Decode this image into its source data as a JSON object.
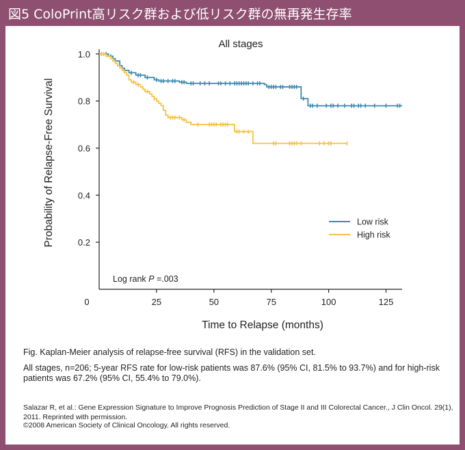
{
  "header": {
    "title": "図5 ColoPrint高リスク群および低リスク群の無再発生存率"
  },
  "chart_data": {
    "type": "line",
    "title": "All stages",
    "xlabel": "Time to Relapse (months)",
    "ylabel": "Probability of Relapse-Free Survival",
    "xlim": [
      0,
      132
    ],
    "ylim": [
      0,
      1.02
    ],
    "x_ticks": [
      "0",
      "25",
      "50",
      "75",
      "100",
      "125"
    ],
    "y_ticks": [
      "0.2",
      "0.4",
      "0.6",
      "0.8",
      "1.0"
    ],
    "legend_position": "right",
    "annotation_prefix": "Log rank ",
    "annotation_p": "P",
    "annotation_value": " =.003",
    "series": [
      {
        "name": "Low risk",
        "color": "#3a89b0",
        "steps": [
          [
            0,
            1.0
          ],
          [
            4,
            0.99
          ],
          [
            6,
            0.98
          ],
          [
            7,
            0.97
          ],
          [
            9,
            0.95
          ],
          [
            10,
            0.94
          ],
          [
            11,
            0.93
          ],
          [
            13,
            0.92
          ],
          [
            16,
            0.91
          ],
          [
            20,
            0.9
          ],
          [
            24,
            0.89
          ],
          [
            26,
            0.885
          ],
          [
            35,
            0.88
          ],
          [
            38,
            0.875
          ],
          [
            72,
            0.87
          ],
          [
            73,
            0.86
          ],
          [
            88,
            0.81
          ],
          [
            91,
            0.78
          ],
          [
            132,
            0.78
          ]
        ],
        "censors": [
          [
            1,
            1.0
          ],
          [
            3,
            1.0
          ],
          [
            5,
            0.99
          ],
          [
            14,
            0.92
          ],
          [
            17,
            0.91
          ],
          [
            18,
            0.91
          ],
          [
            21,
            0.9
          ],
          [
            25,
            0.89
          ],
          [
            27,
            0.885
          ],
          [
            28,
            0.885
          ],
          [
            30,
            0.885
          ],
          [
            32,
            0.885
          ],
          [
            33,
            0.885
          ],
          [
            36,
            0.88
          ],
          [
            37,
            0.88
          ],
          [
            40,
            0.875
          ],
          [
            41,
            0.875
          ],
          [
            44,
            0.875
          ],
          [
            46,
            0.875
          ],
          [
            48,
            0.875
          ],
          [
            52,
            0.875
          ],
          [
            53,
            0.875
          ],
          [
            55,
            0.875
          ],
          [
            57,
            0.875
          ],
          [
            59,
            0.875
          ],
          [
            60,
            0.875
          ],
          [
            61,
            0.875
          ],
          [
            62,
            0.875
          ],
          [
            63,
            0.875
          ],
          [
            64,
            0.875
          ],
          [
            65,
            0.875
          ],
          [
            67,
            0.875
          ],
          [
            69,
            0.875
          ],
          [
            70,
            0.875
          ],
          [
            74,
            0.86
          ],
          [
            75,
            0.86
          ],
          [
            76,
            0.86
          ],
          [
            77,
            0.86
          ],
          [
            79,
            0.86
          ],
          [
            80,
            0.86
          ],
          [
            83,
            0.86
          ],
          [
            84,
            0.86
          ],
          [
            85,
            0.86
          ],
          [
            86,
            0.86
          ],
          [
            89,
            0.81
          ],
          [
            92,
            0.78
          ],
          [
            93,
            0.78
          ],
          [
            95,
            0.78
          ],
          [
            99,
            0.78
          ],
          [
            101,
            0.78
          ],
          [
            102,
            0.78
          ],
          [
            104,
            0.78
          ],
          [
            107,
            0.78
          ],
          [
            110,
            0.78
          ],
          [
            111,
            0.78
          ],
          [
            113,
            0.78
          ],
          [
            114,
            0.78
          ],
          [
            116,
            0.78
          ],
          [
            120,
            0.78
          ],
          [
            125,
            0.78
          ],
          [
            130,
            0.78
          ],
          [
            131,
            0.78
          ]
        ]
      },
      {
        "name": "High risk",
        "color": "#f5c141",
        "steps": [
          [
            0,
            1.0
          ],
          [
            3,
            0.99
          ],
          [
            5,
            0.98
          ],
          [
            6,
            0.97
          ],
          [
            7,
            0.96
          ],
          [
            8,
            0.95
          ],
          [
            9,
            0.94
          ],
          [
            10,
            0.93
          ],
          [
            11,
            0.92
          ],
          [
            12,
            0.91
          ],
          [
            13,
            0.89
          ],
          [
            14,
            0.88
          ],
          [
            16,
            0.87
          ],
          [
            18,
            0.86
          ],
          [
            19,
            0.85
          ],
          [
            20,
            0.84
          ],
          [
            22,
            0.83
          ],
          [
            23,
            0.82
          ],
          [
            24,
            0.81
          ],
          [
            25,
            0.8
          ],
          [
            26,
            0.79
          ],
          [
            27,
            0.78
          ],
          [
            28,
            0.76
          ],
          [
            29,
            0.74
          ],
          [
            30,
            0.73
          ],
          [
            36,
            0.72
          ],
          [
            38,
            0.71
          ],
          [
            40,
            0.7
          ],
          [
            59,
            0.67
          ],
          [
            67,
            0.62
          ],
          [
            108,
            0.62
          ]
        ],
        "censors": [
          [
            1,
            1.0
          ],
          [
            2,
            1.0
          ],
          [
            15,
            0.88
          ],
          [
            17,
            0.87
          ],
          [
            21,
            0.84
          ],
          [
            24,
            0.81
          ],
          [
            31,
            0.73
          ],
          [
            32,
            0.73
          ],
          [
            33,
            0.73
          ],
          [
            35,
            0.73
          ],
          [
            37,
            0.72
          ],
          [
            43,
            0.7
          ],
          [
            48,
            0.7
          ],
          [
            49,
            0.7
          ],
          [
            50,
            0.7
          ],
          [
            51,
            0.7
          ],
          [
            53,
            0.7
          ],
          [
            54,
            0.7
          ],
          [
            55,
            0.7
          ],
          [
            56,
            0.7
          ],
          [
            60,
            0.67
          ],
          [
            61,
            0.67
          ],
          [
            63,
            0.67
          ],
          [
            65,
            0.67
          ],
          [
            76,
            0.62
          ],
          [
            77,
            0.62
          ],
          [
            83,
            0.62
          ],
          [
            84,
            0.62
          ],
          [
            85,
            0.62
          ],
          [
            86,
            0.62
          ],
          [
            88,
            0.62
          ],
          [
            96,
            0.62
          ],
          [
            98,
            0.62
          ],
          [
            100,
            0.62
          ],
          [
            101,
            0.62
          ],
          [
            108,
            0.62
          ]
        ]
      }
    ]
  },
  "caption": {
    "fig": "Fig.  Kaplan-Meier analysis of relapse-free survival (RFS) in the validation set.",
    "body": "All stages, n=206; 5-year RFS rate for low-risk patients was 87.6% (95% CI, 81.5% to 93.7%) and for high-risk patients was 67.2% (95% CI, 55.4% to 79.0%)."
  },
  "credit": {
    "citation": "Salazar R, et al.: Gene Expression Signature to Improve Prognosis Prediction of Stage II and III Colorectal Cancer., J Clin Oncol. 29(1), 2011. Reprinted with permission.",
    "copyright": "©2008 American Society of Clinical Oncology. All rights reserved."
  }
}
